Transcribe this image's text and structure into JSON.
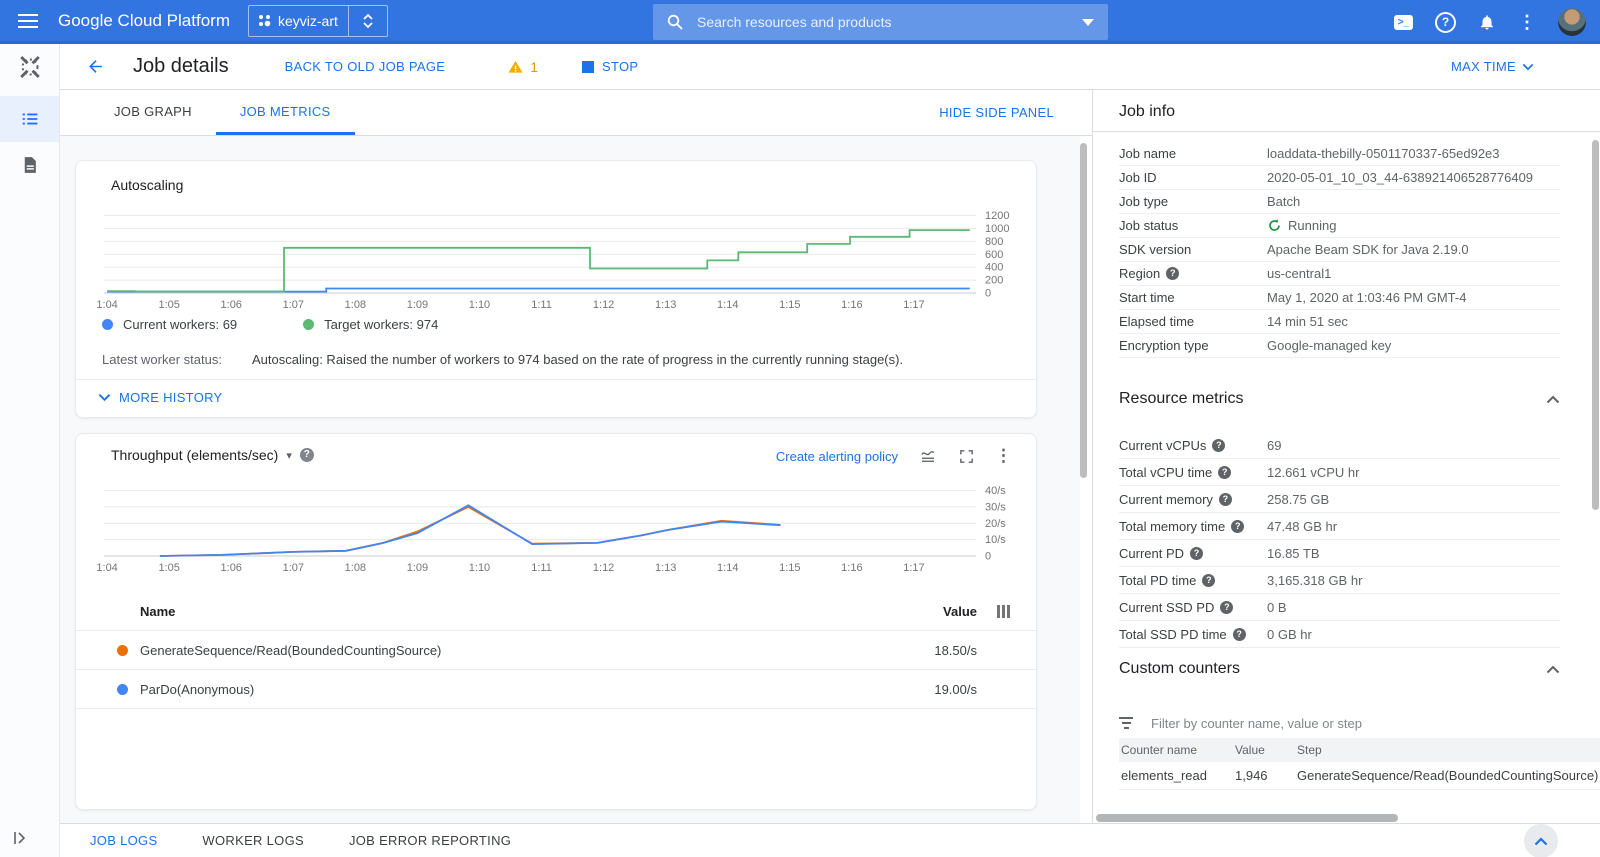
{
  "topbar": {
    "product": "Google Cloud Platform",
    "project": "keyviz-art",
    "search_placeholder": "Search resources and products"
  },
  "header": {
    "title": "Job details",
    "back_to_old": "BACK TO OLD JOB PAGE",
    "warning_count": "1",
    "stop": "STOP",
    "time_range": "MAX TIME"
  },
  "tabs": {
    "job_graph": "JOB GRAPH",
    "job_metrics": "JOB METRICS",
    "hide_side_panel": "HIDE SIDE PANEL"
  },
  "autoscaling": {
    "legend": [
      {
        "label": "Current workers: 69",
        "color": "#4285f4"
      },
      {
        "label": "Target workers: 974",
        "color": "#5bb974"
      }
    ],
    "status_label": "Latest worker status:",
    "status_text": "Autoscaling: Raised the number of workers to 974 based on the rate of progress in the currently running stage(s).",
    "more_history": "MORE HISTORY"
  },
  "throughput": {
    "create_alerting_policy": "Create alerting policy",
    "table": {
      "name_header": "Name",
      "value_header": "Value",
      "rows": [
        {
          "color": "#e8710a",
          "name": "GenerateSequence/Read(BoundedCountingSource)",
          "value": "18.50/s"
        },
        {
          "color": "#4285f4",
          "name": "ParDo(Anonymous)",
          "value": "19.00/s"
        }
      ]
    }
  },
  "chart_data": [
    {
      "type": "line",
      "title": "Autoscaling",
      "x_tick_labels": [
        "1:04",
        "1:05",
        "1:06",
        "1:07",
        "1:08",
        "1:09",
        "1:10",
        "1:11",
        "1:12",
        "1:13",
        "1:14",
        "1:15",
        "1:16",
        "1:17"
      ],
      "y_ticks": [
        0,
        200,
        400,
        600,
        800,
        1000,
        1200
      ],
      "y_tick_labels": [
        "0",
        "200",
        "400",
        "600",
        "800",
        "1000",
        "1200"
      ],
      "ylim": [
        0,
        1200
      ],
      "grid": true,
      "legend_position": "bottom",
      "series": [
        {
          "name": "Current workers",
          "current_value": 69,
          "color": "#4285f4",
          "points": [
            [
              64.0,
              22
            ],
            [
              67.53,
              22
            ],
            [
              67.53,
              69
            ],
            [
              77.9,
              69
            ]
          ]
        },
        {
          "name": "Target workers",
          "current_value": 974,
          "color": "#5bb974",
          "points": [
            [
              64.0,
              30
            ],
            [
              64.45,
              30
            ],
            [
              64.45,
              24
            ],
            [
              66.85,
              24
            ],
            [
              66.85,
              700
            ],
            [
              71.78,
              700
            ],
            [
              71.78,
              380
            ],
            [
              73.67,
              380
            ],
            [
              73.67,
              505
            ],
            [
              74.17,
              505
            ],
            [
              74.17,
              630
            ],
            [
              75.28,
              630
            ],
            [
              75.28,
              760
            ],
            [
              75.97,
              760
            ],
            [
              75.97,
              870
            ],
            [
              76.93,
              870
            ],
            [
              76.93,
              974
            ],
            [
              77.9,
              974
            ]
          ]
        }
      ]
    },
    {
      "type": "line",
      "title": "Throughput (elements/sec)",
      "x_tick_labels": [
        "1:04",
        "1:05",
        "1:06",
        "1:07",
        "1:08",
        "1:09",
        "1:10",
        "1:11",
        "1:12",
        "1:13",
        "1:14",
        "1:15",
        "1:16",
        "1:17"
      ],
      "y_ticks": [
        0,
        10,
        20,
        30,
        40
      ],
      "y_tick_labels": [
        "0",
        "10/s",
        "20/s",
        "30/s",
        "40/s"
      ],
      "ylim": [
        0,
        40
      ],
      "grid": true,
      "series": [
        {
          "name": "GenerateSequence/Read(BoundedCountingSource)",
          "current_value": "18.50/s",
          "color": "#e8710a",
          "points": [
            [
              64.85,
              0
            ],
            [
              65.85,
              0.7
            ],
            [
              67.0,
              2.5
            ],
            [
              67.85,
              3.2
            ],
            [
              68.45,
              8
            ],
            [
              69.0,
              15
            ],
            [
              69.82,
              30
            ],
            [
              70.85,
              7.5
            ],
            [
              71.9,
              8
            ],
            [
              72.6,
              12.5
            ],
            [
              73.05,
              16
            ],
            [
              73.9,
              21.5
            ],
            [
              74.85,
              19
            ]
          ]
        },
        {
          "name": "ParDo(Anonymous)",
          "current_value": "19.00/s",
          "color": "#4285f4",
          "points": [
            [
              64.85,
              0
            ],
            [
              65.85,
              0.7
            ],
            [
              67.0,
              2.5
            ],
            [
              67.85,
              3.2
            ],
            [
              68.45,
              8
            ],
            [
              69.0,
              14
            ],
            [
              69.82,
              31
            ],
            [
              70.85,
              7.3
            ],
            [
              71.9,
              8
            ],
            [
              72.6,
              12.5
            ],
            [
              73.05,
              16
            ],
            [
              73.9,
              21
            ],
            [
              74.85,
              18.8
            ]
          ]
        }
      ]
    }
  ],
  "job_info": {
    "title": "Job info",
    "rows": [
      {
        "label": "Job name",
        "value": "loaddata-thebilly-0501170337-65ed92e3"
      },
      {
        "label": "Job ID",
        "value": "2020-05-01_10_03_44-638921406528776409"
      },
      {
        "label": "Job type",
        "value": "Batch"
      },
      {
        "label": "Job status",
        "value": "Running"
      },
      {
        "label": "SDK version",
        "value": "Apache Beam SDK for Java 2.19.0"
      },
      {
        "label": "Region",
        "value": "us-central1"
      },
      {
        "label": "Start time",
        "value": "May 1, 2020 at 1:03:46 PM GMT-4"
      },
      {
        "label": "Elapsed time",
        "value": "14 min 51 sec"
      },
      {
        "label": "Encryption type",
        "value": "Google-managed key"
      }
    ]
  },
  "resource_metrics": {
    "title": "Resource metrics",
    "rows": [
      {
        "label": "Current vCPUs",
        "value": "69"
      },
      {
        "label": "Total vCPU time",
        "value": "12.661 vCPU hr"
      },
      {
        "label": "Current memory",
        "value": "258.75 GB"
      },
      {
        "label": "Total memory time",
        "value": "47.48 GB hr"
      },
      {
        "label": "Current PD",
        "value": "16.85 TB"
      },
      {
        "label": "Total PD time",
        "value": "3,165.318 GB hr"
      },
      {
        "label": "Current SSD PD",
        "value": "0 B"
      },
      {
        "label": "Total SSD PD time",
        "value": "0 GB hr"
      }
    ]
  },
  "custom_counters": {
    "title": "Custom counters",
    "filter_placeholder": "Filter by counter name, value or step",
    "headers": [
      "Counter name",
      "Value",
      "Step"
    ],
    "rows": [
      {
        "name": "elements_read",
        "value": "1,946",
        "step": "GenerateSequence/Read(BoundedCountingSource)"
      }
    ]
  },
  "bottom_bar": {
    "job_logs": "JOB LOGS",
    "worker_logs": "WORKER LOGS",
    "job_error_reporting": "JOB ERROR REPORTING"
  },
  "status_colors": {
    "running_green": "#1e8e3e",
    "warning_amber": "#f9ab00",
    "link_blue": "#1a73e8"
  }
}
